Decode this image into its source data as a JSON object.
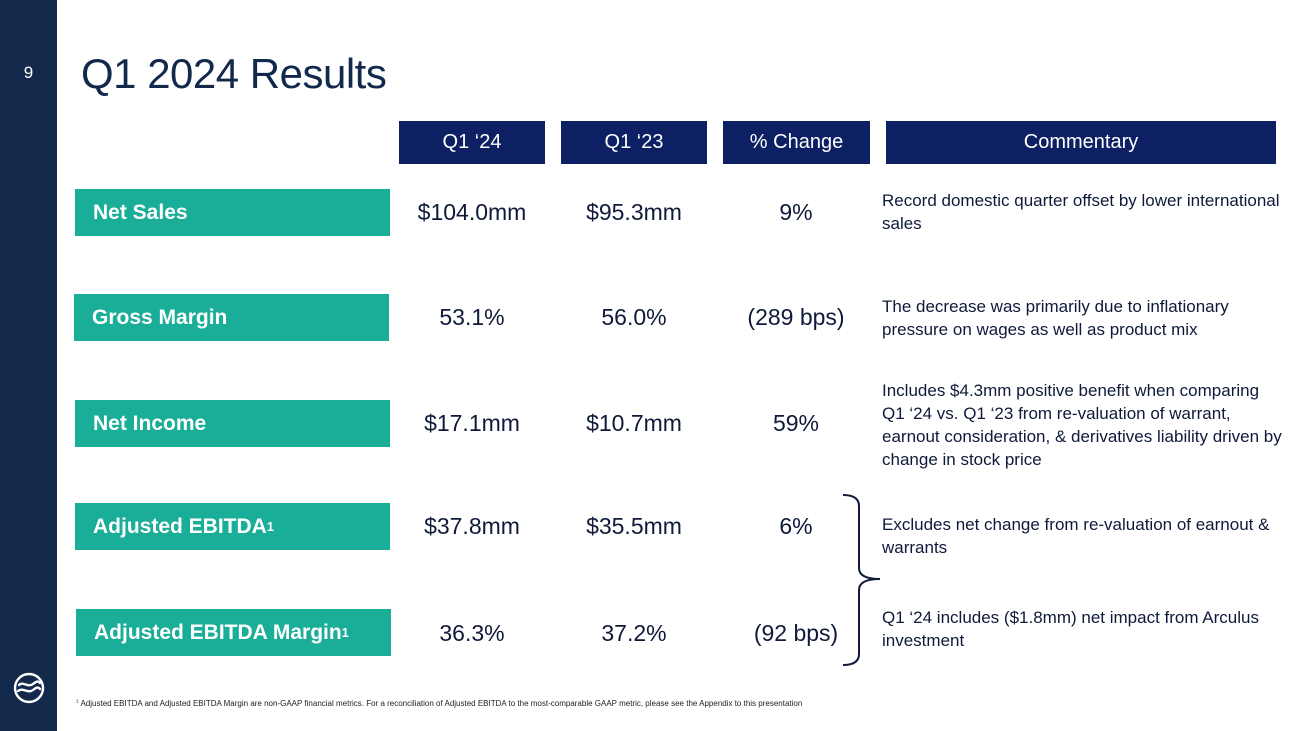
{
  "page_number": "9",
  "title": "Q1 2024 Results",
  "headers": {
    "q1_24": "Q1 ‘24",
    "q1_23": "Q1 ‘23",
    "pct_change": "% Change",
    "commentary": "Commentary"
  },
  "rows": [
    {
      "label": "Net Sales",
      "sup": "",
      "q1_24": "$104.0mm",
      "q1_23": "$95.3mm",
      "change": "9%",
      "commentary": "Record domestic quarter offset by lower international sales"
    },
    {
      "label": "Gross Margin",
      "sup": "",
      "q1_24": "53.1%",
      "q1_23": "56.0%",
      "change": "(289 bps)",
      "commentary": "The decrease was primarily due to inflationary pressure on wages as well as product mix"
    },
    {
      "label": "Net Income",
      "sup": "",
      "q1_24": "$17.1mm",
      "q1_23": "$10.7mm",
      "change": "59%",
      "commentary": "Includes $4.3mm positive benefit when comparing Q1 ‘24 vs. Q1 ‘23 from re-valuation of warrant, earnout consideration, & derivatives liability driven by change in stock price"
    },
    {
      "label": "Adjusted EBITDA",
      "sup": "1",
      "q1_24": "$37.8mm",
      "q1_23": "$35.5mm",
      "change": "6%",
      "commentary": "Excludes net change from re-valuation of earnout & warrants"
    },
    {
      "label": "Adjusted EBITDA Margin",
      "sup": "1",
      "q1_24": "36.3%",
      "q1_23": "37.2%",
      "change": "(92 bps)",
      "commentary": "Q1 ‘24 includes ($1.8mm) net impact from Arculus investment"
    }
  ],
  "footnote": {
    "marker": "1",
    "text": "Adjusted EBITDA and Adjusted EBITDA Margin are non-GAAP financial metrics. For a reconciliation of Adjusted EBITDA to the most-comparable GAAP metric, please see the Appendix to this presentation"
  },
  "colors": {
    "sidebar": "#13294b",
    "header_bg": "#0c2063",
    "label_bg": "#1aae98",
    "title": "#13294b"
  },
  "icons": {
    "logo": "company-logo-icon",
    "brace": "right-curly-brace-icon"
  }
}
